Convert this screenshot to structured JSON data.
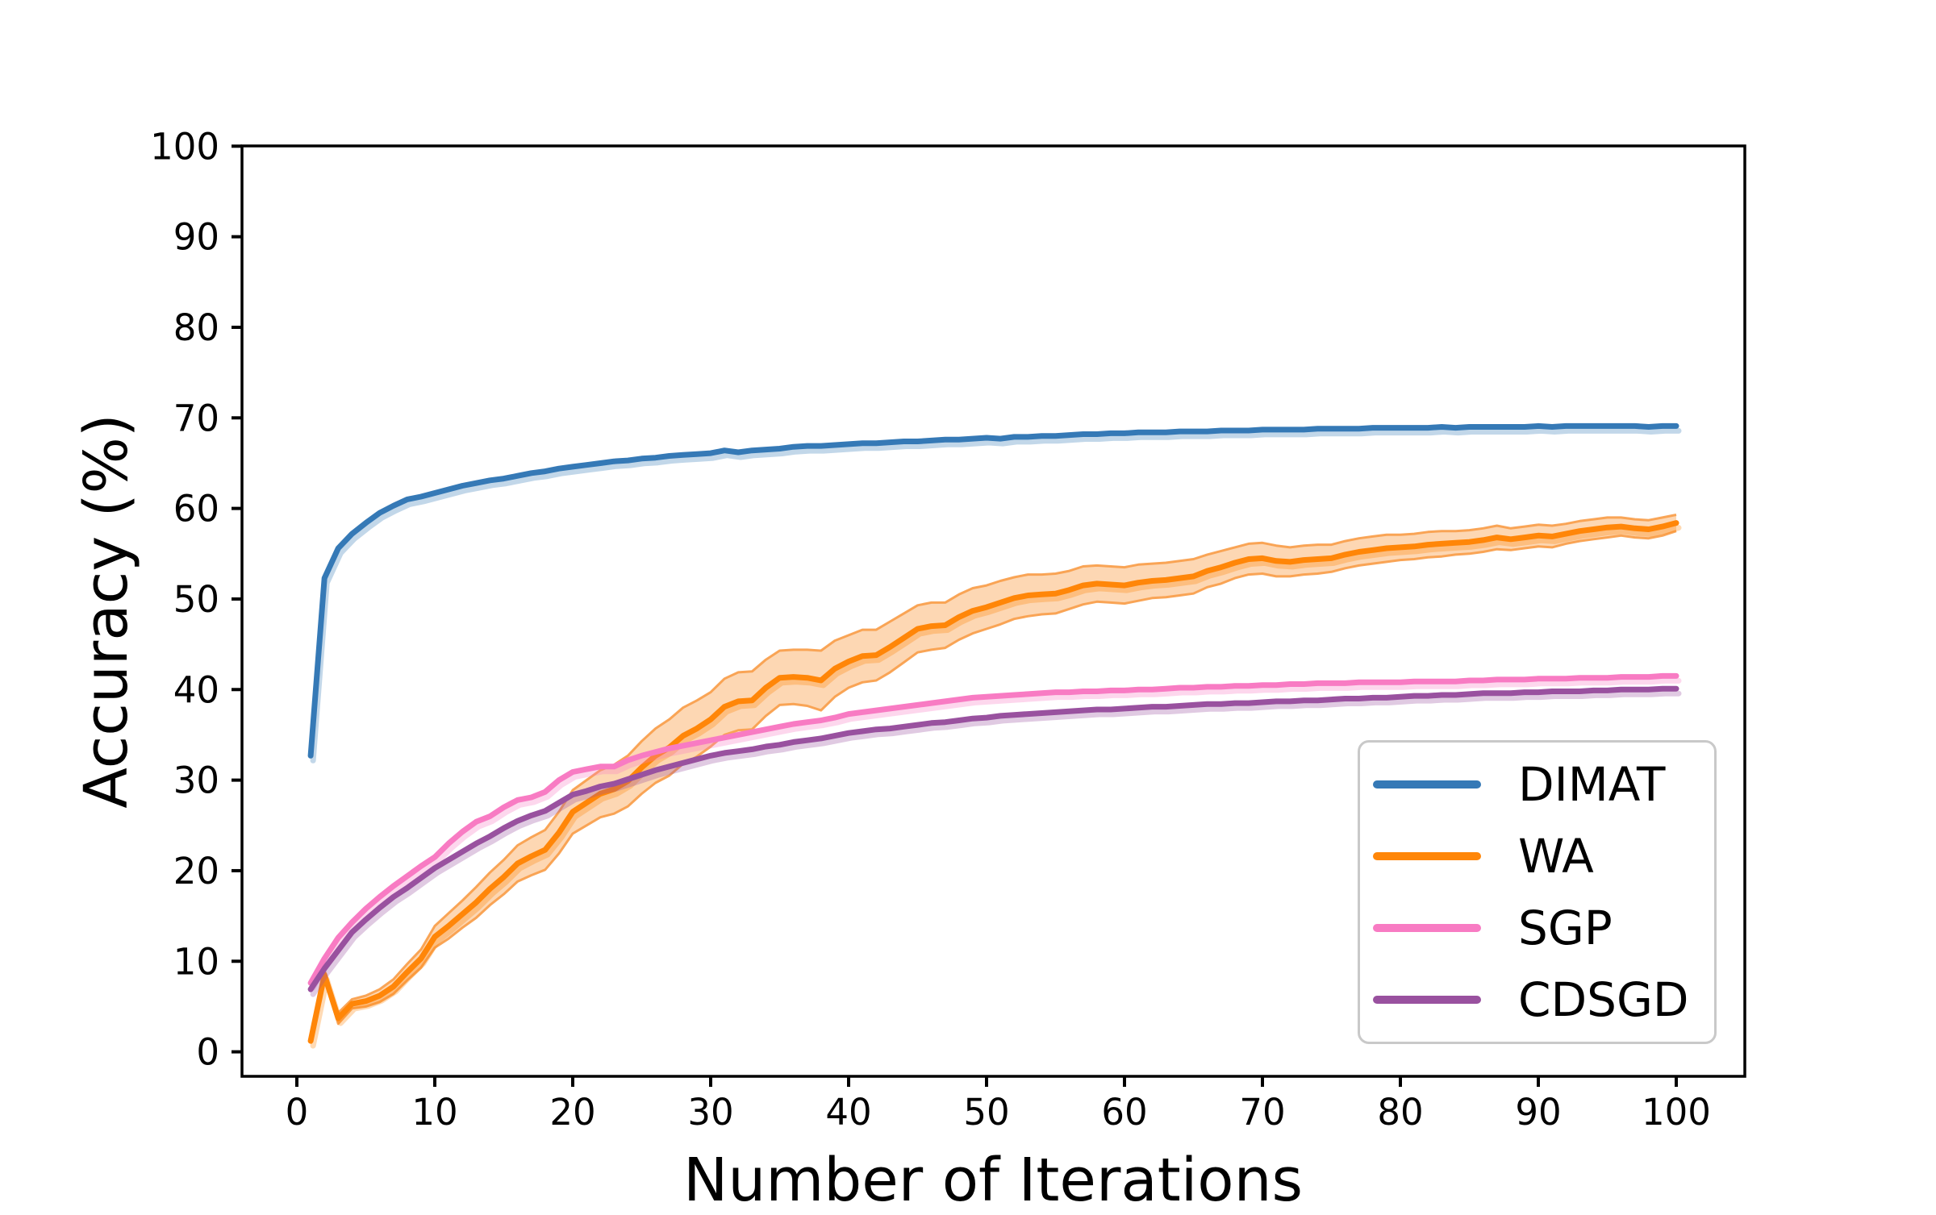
{
  "chart_data": {
    "type": "line",
    "title": "",
    "xlabel": "Number of Iterations",
    "ylabel": "Accuracy (%)",
    "x_range": [
      1,
      100
    ],
    "x_ticks": [
      0,
      10,
      20,
      30,
      40,
      50,
      60,
      70,
      80,
      90,
      100
    ],
    "y_ticks": [
      0,
      10,
      20,
      30,
      40,
      50,
      60,
      70,
      80,
      90,
      100
    ],
    "xlim": [
      -4,
      105
    ],
    "ylim": [
      -2.7,
      100
    ],
    "grid": false,
    "legend_position": "lower right",
    "axis_color": "#000000",
    "series": [
      {
        "name": "DIMAT",
        "color": "#3579b6",
        "values": [
          32.7,
          52.3,
          55.6,
          57.2,
          58.4,
          59.5,
          60.3,
          61.0,
          61.3,
          61.7,
          62.1,
          62.5,
          62.8,
          63.1,
          63.3,
          63.6,
          63.9,
          64.1,
          64.4,
          64.6,
          64.8,
          65.0,
          65.2,
          65.3,
          65.5,
          65.6,
          65.8,
          65.9,
          66.0,
          66.1,
          66.4,
          66.2,
          66.4,
          66.5,
          66.6,
          66.8,
          66.9,
          66.9,
          67.0,
          67.1,
          67.2,
          67.2,
          67.3,
          67.4,
          67.4,
          67.5,
          67.6,
          67.6,
          67.7,
          67.8,
          67.7,
          67.9,
          67.9,
          68.0,
          68.0,
          68.1,
          68.2,
          68.2,
          68.3,
          68.3,
          68.4,
          68.4,
          68.4,
          68.5,
          68.5,
          68.5,
          68.6,
          68.6,
          68.6,
          68.7,
          68.7,
          68.7,
          68.7,
          68.8,
          68.8,
          68.8,
          68.8,
          68.9,
          68.9,
          68.9,
          68.9,
          68.9,
          69.0,
          68.9,
          69.0,
          69.0,
          69.0,
          69.0,
          69.0,
          69.1,
          69.0,
          69.1,
          69.1,
          69.1,
          69.1,
          69.1,
          69.1,
          69.0,
          69.1,
          69.1
        ]
      },
      {
        "name": "WA",
        "color": "#ff8608",
        "band_fill_color": "#fcaf68",
        "band_edge_color": "#f9a04e",
        "values": [
          1.2,
          8.5,
          3.7,
          5.3,
          5.6,
          6.2,
          7.2,
          8.8,
          10.3,
          12.7,
          13.9,
          15.2,
          16.5,
          18.0,
          19.3,
          20.8,
          21.6,
          22.3,
          24.2,
          26.5,
          27.5,
          28.5,
          29.0,
          29.9,
          31.4,
          32.7,
          33.6,
          34.9,
          35.7,
          36.7,
          38.1,
          38.7,
          38.8,
          40.2,
          41.3,
          41.4,
          41.3,
          41.0,
          42.3,
          43.1,
          43.7,
          43.8,
          44.7,
          45.7,
          46.7,
          47.0,
          47.1,
          48.0,
          48.7,
          49.1,
          49.6,
          50.1,
          50.4,
          50.5,
          50.6,
          51.0,
          51.5,
          51.7,
          51.6,
          51.5,
          51.8,
          52.0,
          52.1,
          52.3,
          52.5,
          53.1,
          53.5,
          54.0,
          54.4,
          54.5,
          54.2,
          54.1,
          54.3,
          54.4,
          54.5,
          54.9,
          55.2,
          55.4,
          55.6,
          55.7,
          55.8,
          56.0,
          56.1,
          56.2,
          56.3,
          56.5,
          56.8,
          56.6,
          56.8,
          57.0,
          56.9,
          57.2,
          57.5,
          57.7,
          57.9,
          58.0,
          57.8,
          57.7,
          58.0,
          58.4
        ],
        "band_halfwidth": [
          0.3,
          0.5,
          0.6,
          0.5,
          0.6,
          0.7,
          0.8,
          0.9,
          1.0,
          1.2,
          1.4,
          1.5,
          1.7,
          1.8,
          1.9,
          2.0,
          2.1,
          2.2,
          2.3,
          2.4,
          2.5,
          2.6,
          2.7,
          2.8,
          2.9,
          3.0,
          3.1,
          3.1,
          3.1,
          3.0,
          3.1,
          3.2,
          3.2,
          3.1,
          3.0,
          3.0,
          3.1,
          3.3,
          3.1,
          2.9,
          2.9,
          2.8,
          2.8,
          2.7,
          2.6,
          2.6,
          2.5,
          2.5,
          2.5,
          2.4,
          2.4,
          2.3,
          2.3,
          2.2,
          2.2,
          2.1,
          2.1,
          2.0,
          2.0,
          2.0,
          2.0,
          1.9,
          1.9,
          1.9,
          1.9,
          1.8,
          1.8,
          1.7,
          1.7,
          1.7,
          1.7,
          1.6,
          1.6,
          1.6,
          1.5,
          1.5,
          1.5,
          1.5,
          1.5,
          1.4,
          1.4,
          1.4,
          1.4,
          1.3,
          1.3,
          1.3,
          1.3,
          1.2,
          1.2,
          1.2,
          1.2,
          1.1,
          1.1,
          1.1,
          1.1,
          1.0,
          1.0,
          1.0,
          1.0,
          0.9
        ]
      },
      {
        "name": "SGP",
        "color": "#f87bc3",
        "values": [
          7.6,
          10.3,
          12.6,
          14.3,
          15.8,
          17.1,
          18.3,
          19.4,
          20.5,
          21.5,
          23.0,
          24.3,
          25.4,
          26.0,
          27.0,
          27.8,
          28.1,
          28.7,
          30.0,
          30.9,
          31.2,
          31.5,
          31.5,
          32.2,
          32.7,
          33.1,
          33.5,
          33.8,
          34.1,
          34.4,
          34.7,
          35.0,
          35.3,
          35.6,
          35.9,
          36.2,
          36.4,
          36.6,
          36.9,
          37.3,
          37.5,
          37.7,
          37.9,
          38.1,
          38.3,
          38.5,
          38.7,
          38.9,
          39.1,
          39.2,
          39.3,
          39.4,
          39.5,
          39.6,
          39.7,
          39.7,
          39.8,
          39.8,
          39.9,
          39.9,
          40.0,
          40.0,
          40.1,
          40.2,
          40.2,
          40.3,
          40.3,
          40.4,
          40.4,
          40.5,
          40.5,
          40.6,
          40.6,
          40.7,
          40.7,
          40.7,
          40.8,
          40.8,
          40.8,
          40.8,
          40.9,
          40.9,
          40.9,
          40.9,
          41.0,
          41.0,
          41.1,
          41.1,
          41.1,
          41.2,
          41.2,
          41.2,
          41.3,
          41.3,
          41.3,
          41.4,
          41.4,
          41.4,
          41.5,
          41.5
        ]
      },
      {
        "name": "CDSGD",
        "color": "#99519f",
        "values": [
          6.9,
          9.2,
          11.2,
          13.2,
          14.6,
          15.9,
          17.1,
          18.1,
          19.2,
          20.3,
          21.2,
          22.1,
          23.0,
          23.8,
          24.7,
          25.5,
          26.1,
          26.6,
          27.5,
          28.4,
          28.8,
          29.3,
          29.6,
          30.1,
          30.6,
          31.1,
          31.5,
          31.9,
          32.3,
          32.7,
          33.0,
          33.2,
          33.4,
          33.7,
          33.9,
          34.2,
          34.4,
          34.6,
          34.9,
          35.2,
          35.4,
          35.6,
          35.7,
          35.9,
          36.1,
          36.3,
          36.4,
          36.6,
          36.8,
          36.9,
          37.1,
          37.2,
          37.3,
          37.4,
          37.5,
          37.6,
          37.7,
          37.8,
          37.8,
          37.9,
          38.0,
          38.1,
          38.1,
          38.2,
          38.3,
          38.4,
          38.4,
          38.5,
          38.5,
          38.6,
          38.7,
          38.7,
          38.8,
          38.8,
          38.9,
          39.0,
          39.0,
          39.1,
          39.1,
          39.2,
          39.3,
          39.3,
          39.4,
          39.4,
          39.5,
          39.6,
          39.6,
          39.6,
          39.7,
          39.7,
          39.8,
          39.8,
          39.8,
          39.9,
          39.9,
          40.0,
          40.0,
          40.0,
          40.1,
          40.1
        ]
      }
    ]
  },
  "legend": {
    "entries": [
      {
        "label": "DIMAT"
      },
      {
        "label": "WA"
      },
      {
        "label": "SGP"
      },
      {
        "label": "CDSGD"
      }
    ]
  }
}
